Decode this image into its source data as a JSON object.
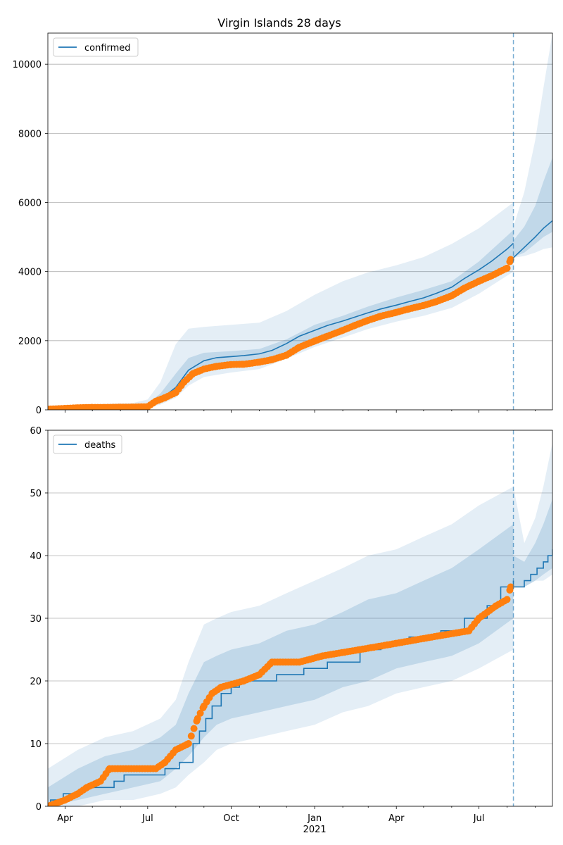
{
  "chart_data": [
    {
      "type": "line",
      "title": "Virgin Islands 28 days",
      "xlabel": "",
      "ylabel": "",
      "x_range": [
        "2020-03-13",
        "2021-09-20"
      ],
      "ylim": [
        0,
        10900
      ],
      "yticks": [
        0,
        2000,
        4000,
        6000,
        8000,
        10000
      ],
      "grid": "horizontal",
      "legend_position": "top-left",
      "forecast_start": "2021-08-08",
      "colors": {
        "line": "#1f77b4",
        "observed": "#ff7f0e",
        "band": "#1f77b4"
      },
      "series": [
        {
          "name": "confirmed",
          "style": "line",
          "x": [
            "2020-03-13",
            "2020-04-15",
            "2020-05-15",
            "2020-06-15",
            "2020-07-01",
            "2020-07-15",
            "2020-08-01",
            "2020-08-15",
            "2020-09-01",
            "2020-09-15",
            "2020-10-01",
            "2020-10-15",
            "2020-11-01",
            "2020-11-15",
            "2020-12-01",
            "2020-12-15",
            "2021-01-01",
            "2021-01-15",
            "2021-02-01",
            "2021-02-15",
            "2021-03-01",
            "2021-03-15",
            "2021-04-01",
            "2021-04-15",
            "2021-05-01",
            "2021-05-15",
            "2021-06-01",
            "2021-06-15",
            "2021-07-01",
            "2021-07-15",
            "2021-08-01",
            "2021-08-08"
          ],
          "values": [
            30,
            60,
            80,
            100,
            130,
            300,
            650,
            1150,
            1420,
            1510,
            1540,
            1570,
            1620,
            1720,
            1920,
            2130,
            2300,
            2440,
            2570,
            2690,
            2810,
            2920,
            3030,
            3130,
            3240,
            3370,
            3550,
            3800,
            4050,
            4300,
            4650,
            4820
          ]
        },
        {
          "name": "",
          "style": "forecast-line",
          "x": [
            "2021-08-08",
            "2021-08-12",
            "2021-08-20",
            "2021-09-01",
            "2021-09-10",
            "2021-09-20"
          ],
          "values": [
            4400,
            4500,
            4700,
            5000,
            5250,
            5470
          ]
        },
        {
          "name": "",
          "style": "observed-points",
          "x": [
            "2020-03-13",
            "2020-04-01",
            "2020-04-15",
            "2020-05-01",
            "2020-05-15",
            "2020-06-01",
            "2020-06-15",
            "2020-07-01",
            "2020-07-10",
            "2020-07-20",
            "2020-08-01",
            "2020-08-10",
            "2020-08-20",
            "2020-09-01",
            "2020-09-15",
            "2020-10-01",
            "2020-10-15",
            "2020-11-01",
            "2020-11-15",
            "2020-12-01",
            "2020-12-15",
            "2021-01-01",
            "2021-01-15",
            "2021-02-01",
            "2021-02-15",
            "2021-03-01",
            "2021-03-15",
            "2021-04-01",
            "2021-04-15",
            "2021-05-01",
            "2021-05-15",
            "2021-06-01",
            "2021-06-15",
            "2021-07-01",
            "2021-07-15",
            "2021-08-01",
            "2021-08-05"
          ],
          "values": [
            20,
            40,
            60,
            70,
            70,
            75,
            80,
            90,
            250,
            350,
            500,
            800,
            1050,
            1180,
            1260,
            1310,
            1320,
            1380,
            1450,
            1580,
            1810,
            1990,
            2130,
            2300,
            2450,
            2590,
            2710,
            2820,
            2920,
            3020,
            3130,
            3300,
            3520,
            3720,
            3880,
            4100,
            4350
          ]
        }
      ],
      "bands": {
        "x": [
          "2020-03-13",
          "2020-06-15",
          "2020-07-01",
          "2020-07-15",
          "2020-08-01",
          "2020-08-15",
          "2020-09-01",
          "2020-10-01",
          "2020-11-01",
          "2020-12-01",
          "2021-01-01",
          "2021-02-01",
          "2021-03-01",
          "2021-04-01",
          "2021-05-01",
          "2021-06-01",
          "2021-07-01",
          "2021-08-08"
        ],
        "outer_low": [
          0,
          40,
          60,
          150,
          350,
          700,
          950,
          1080,
          1180,
          1480,
          1820,
          2090,
          2340,
          2550,
          2720,
          2950,
          3360,
          4000
        ],
        "outer_high": [
          120,
          200,
          300,
          800,
          1900,
          2350,
          2400,
          2460,
          2520,
          2860,
          3330,
          3720,
          3980,
          4180,
          4420,
          4800,
          5250,
          6000
        ],
        "inner_low": [
          10,
          70,
          100,
          240,
          530,
          950,
          1180,
          1300,
          1390,
          1690,
          2060,
          2340,
          2560,
          2780,
          2980,
          3200,
          3670,
          4360
        ],
        "inner_high": [
          70,
          140,
          190,
          470,
          1050,
          1500,
          1650,
          1700,
          1760,
          2040,
          2460,
          2720,
          2990,
          3250,
          3470,
          3720,
          4290,
          5200
        ],
        "forecast_x": [
          "2021-08-08",
          "2021-08-20",
          "2021-09-01",
          "2021-09-10",
          "2021-09-20"
        ],
        "forecast_outer_low": [
          4400,
          4450,
          4550,
          4650,
          4700
        ],
        "forecast_outer_high": [
          5300,
          6300,
          7800,
          9300,
          10900
        ],
        "forecast_inner_low": [
          4420,
          4550,
          4800,
          5000,
          5150
        ],
        "forecast_inner_high": [
          4900,
          5300,
          5900,
          6600,
          7300
        ]
      }
    },
    {
      "type": "line",
      "title": "",
      "xlabel": "",
      "ylabel": "",
      "x_range": [
        "2020-03-13",
        "2021-09-20"
      ],
      "ylim": [
        0,
        60
      ],
      "yticks": [
        0,
        10,
        20,
        30,
        40,
        50,
        60
      ],
      "grid": "horizontal",
      "legend_position": "top-left",
      "forecast_start": "2021-08-08",
      "xticks": [
        "Apr",
        "Jul",
        "Oct",
        "Jan",
        "Apr",
        "Jul"
      ],
      "xtick_dates": [
        "2020-04-01",
        "2020-07-01",
        "2020-10-01",
        "2021-01-01",
        "2021-04-01",
        "2021-07-01"
      ],
      "year_label": "2021",
      "colors": {
        "line": "#1f77b4",
        "observed": "#ff7f0e",
        "band": "#1f77b4"
      },
      "series": [
        {
          "name": "deaths",
          "style": "step-line",
          "x": [
            "2020-03-13",
            "2020-03-16",
            "2020-03-30",
            "2020-04-20",
            "2020-05-25",
            "2020-06-05",
            "2020-07-20",
            "2020-08-05",
            "2020-08-20",
            "2020-08-27",
            "2020-09-03",
            "2020-09-10",
            "2020-09-20",
            "2020-10-01",
            "2020-10-10",
            "2020-10-25",
            "2020-11-20",
            "2020-12-20",
            "2021-01-15",
            "2021-02-20",
            "2021-03-15",
            "2021-04-15",
            "2021-05-20",
            "2021-06-15",
            "2021-07-10",
            "2021-07-25",
            "2021-08-08"
          ],
          "values": [
            0,
            1,
            2,
            3,
            4,
            5,
            6,
            7,
            10,
            12,
            14,
            16,
            18,
            19,
            20,
            20,
            21,
            22,
            23,
            25,
            26,
            27,
            28,
            30,
            32,
            35,
            36
          ]
        },
        {
          "name": "",
          "style": "forecast-step",
          "x": [
            "2021-08-08",
            "2021-08-20",
            "2021-08-27",
            "2021-09-03",
            "2021-09-10",
            "2021-09-15",
            "2021-09-20"
          ],
          "values": [
            35,
            36,
            37,
            38,
            39,
            40,
            41
          ]
        },
        {
          "name": "",
          "style": "observed-points",
          "x": [
            "2020-03-13",
            "2020-04-01",
            "2020-04-15",
            "2020-04-25",
            "2020-05-10",
            "2020-05-20",
            "2020-07-10",
            "2020-07-20",
            "2020-08-01",
            "2020-08-15",
            "2020-08-25",
            "2020-09-01",
            "2020-09-10",
            "2020-09-20",
            "2020-10-15",
            "2020-11-01",
            "2020-11-15",
            "2020-12-15",
            "2021-01-10",
            "2021-02-20",
            "2021-04-01",
            "2021-05-10",
            "2021-06-20",
            "2021-07-01",
            "2021-07-20",
            "2021-08-01",
            "2021-08-05"
          ],
          "values": [
            0,
            1,
            2,
            3,
            4,
            6,
            6,
            7,
            9,
            10,
            14,
            16,
            18,
            19,
            20,
            21,
            23,
            23,
            24,
            25,
            26,
            27,
            28,
            30,
            32,
            33,
            35
          ]
        }
      ],
      "bands": {
        "x": [
          "2020-03-13",
          "2020-04-15",
          "2020-05-15",
          "2020-06-15",
          "2020-07-15",
          "2020-08-01",
          "2020-08-15",
          "2020-09-01",
          "2020-09-15",
          "2020-10-01",
          "2020-11-01",
          "2020-12-01",
          "2021-01-01",
          "2021-02-01",
          "2021-03-01",
          "2021-04-01",
          "2021-05-01",
          "2021-06-01",
          "2021-07-01",
          "2021-08-08"
        ],
        "outer_low": [
          0,
          0,
          1,
          1,
          2,
          3,
          5,
          7,
          9,
          10,
          11,
          12,
          13,
          15,
          16,
          18,
          19,
          20,
          22,
          25
        ],
        "outer_high": [
          6,
          9,
          11,
          12,
          14,
          17,
          23,
          29,
          30,
          31,
          32,
          34,
          36,
          38,
          40,
          41,
          43,
          45,
          48,
          51
        ],
        "inner_low": [
          0,
          1,
          2,
          3,
          4,
          6,
          8,
          11,
          13,
          14,
          15,
          16,
          17,
          19,
          20,
          22,
          23,
          24,
          26,
          30
        ],
        "inner_high": [
          3,
          6,
          8,
          9,
          11,
          13,
          18,
          23,
          24,
          25,
          26,
          28,
          29,
          31,
          33,
          34,
          36,
          38,
          41,
          45
        ],
        "forecast_x": [
          "2021-08-08",
          "2021-08-20",
          "2021-09-01",
          "2021-09-10",
          "2021-09-20"
        ],
        "forecast_outer_low": [
          35,
          35,
          36,
          36,
          37
        ],
        "forecast_outer_high": [
          51,
          42,
          46,
          51,
          58
        ],
        "forecast_inner_low": [
          35,
          35,
          36,
          37,
          38
        ],
        "forecast_inner_high": [
          40,
          39,
          42,
          45,
          49
        ]
      }
    }
  ]
}
